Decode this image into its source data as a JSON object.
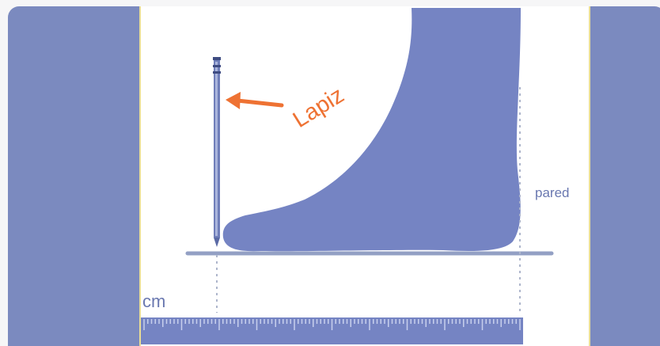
{
  "labels": {
    "pencil": "Lapiz",
    "wall": "pared",
    "unit": "cm"
  },
  "colors": {
    "panel": "#7b8abf",
    "foot": "#7584c3",
    "pencil_label": "#ee7233",
    "ruler": "#7584c3",
    "frame_border": "#e9dd96"
  },
  "icons": {
    "foot": "foot-silhouette-icon",
    "pencil": "pencil-icon",
    "arrow": "arrow-left-icon",
    "ruler": "ruler-icon"
  }
}
